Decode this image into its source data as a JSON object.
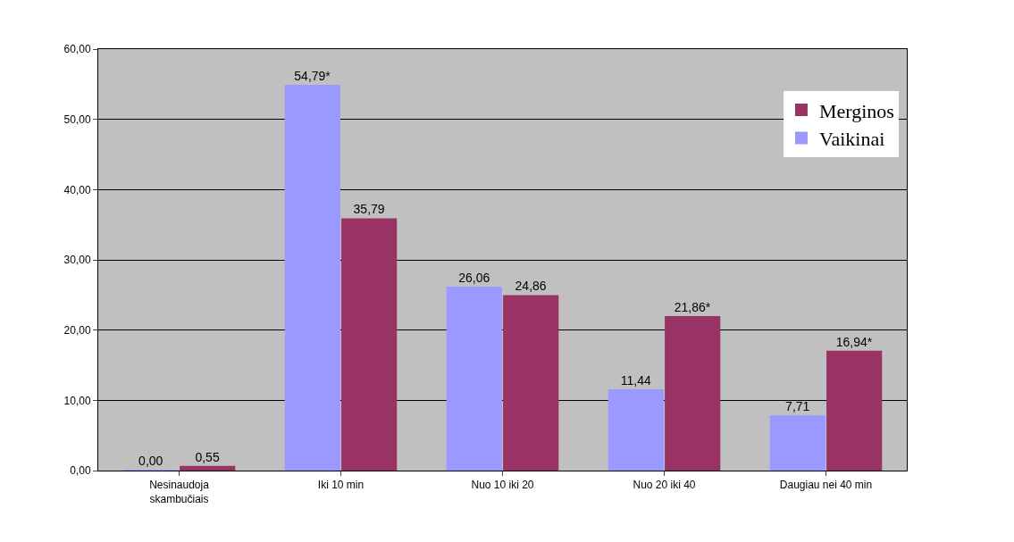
{
  "chart_data": {
    "type": "bar",
    "categories": [
      "Nesinaudoja skambučiais",
      "Iki 10 min",
      "Nuo 10 iki 20",
      "Nuo 20 iki 40",
      "Daugiau nei 40 min"
    ],
    "series": [
      {
        "name": "Vaikinai",
        "color": "#9999ff",
        "values": [
          0.0,
          54.79,
          26.06,
          11.44,
          7.71
        ],
        "value_labels": [
          "0,00",
          "54,79*",
          "26,06",
          "11,44",
          "7,71"
        ]
      },
      {
        "name": "Merginos",
        "color": "#993366",
        "values": [
          0.55,
          35.79,
          24.86,
          21.86,
          16.94
        ],
        "value_labels": [
          "0,55",
          "35,79",
          "24,86",
          "21,86*",
          "16,94*"
        ]
      }
    ],
    "ylim": [
      0,
      60
    ],
    "yticks": [
      {
        "value": 0,
        "label": "0,00"
      },
      {
        "value": 10,
        "label": "10,00"
      },
      {
        "value": 20,
        "label": "20,00"
      },
      {
        "value": 30,
        "label": "30,00"
      },
      {
        "value": 40,
        "label": "40,00"
      },
      {
        "value": 50,
        "label": "50,00"
      },
      {
        "value": 60,
        "label": "60,00"
      }
    ],
    "grid": "y",
    "legend": "right"
  }
}
